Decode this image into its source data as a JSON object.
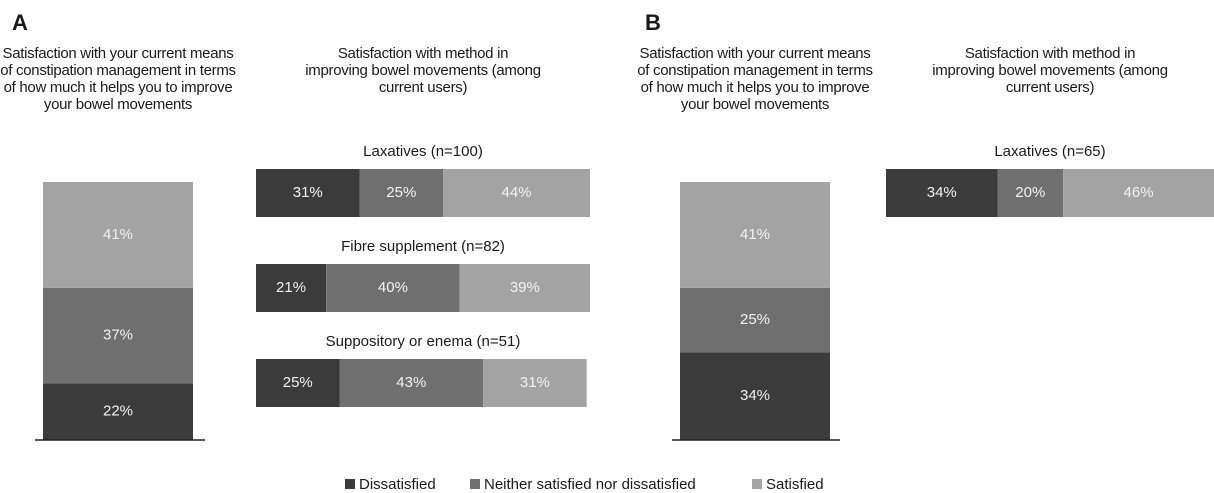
{
  "chart_data": [
    {
      "type": "stacked_column",
      "panel": "A",
      "title": "Satisfaction with your current means of constipation management in terms of how much it helps you to improve your bowel movements",
      "ylim": [
        0,
        100
      ],
      "series": [
        {
          "name": "Dissatisfied",
          "color": "#3b3b3b",
          "values": [
            22
          ],
          "value_labels": [
            "22%"
          ]
        },
        {
          "name": "Neither satisfied nor dissatisfied",
          "color": "#6f6f6f",
          "values": [
            37
          ],
          "value_labels": [
            "37%"
          ]
        },
        {
          "name": "Satisfied",
          "color": "#a3a3a3",
          "values": [
            41
          ],
          "value_labels": [
            "41%"
          ]
        }
      ]
    },
    {
      "type": "stacked_bar",
      "title": "Satisfaction with method in improving bowel movements (among current users)",
      "categories": [
        "Laxatives (n=100)",
        "Fibre supplement (n=82)",
        "Suppository or enema (n=51)"
      ],
      "xlim": [
        0,
        100
      ],
      "series": [
        {
          "name": "Dissatisfied",
          "color": "#3b3b3b",
          "values": [
            31,
            21,
            25
          ],
          "value_labels": [
            "31%",
            "21%",
            "25%"
          ]
        },
        {
          "name": "Neither satisfied nor dissatisfied",
          "color": "#6f6f6f",
          "values": [
            25,
            40,
            43
          ],
          "value_labels": [
            "25%",
            "40%",
            "43%"
          ]
        },
        {
          "name": "Satisfied",
          "color": "#a3a3a3",
          "values": [
            44,
            39,
            31
          ],
          "value_labels": [
            "44%",
            "39%",
            "31%"
          ]
        }
      ]
    },
    {
      "type": "stacked_column",
      "panel": "B",
      "title": "Satisfaction with your current means of constipation management in terms of how much it helps you to improve your bowel movements",
      "ylim": [
        0,
        100
      ],
      "series": [
        {
          "name": "Dissatisfied",
          "color": "#3b3b3b",
          "values": [
            34
          ],
          "value_labels": [
            "34%"
          ]
        },
        {
          "name": "Neither satisfied nor dissatisfied",
          "color": "#6f6f6f",
          "values": [
            25
          ],
          "value_labels": [
            "25%"
          ]
        },
        {
          "name": "Satisfied",
          "color": "#a3a3a3",
          "values": [
            41
          ],
          "value_labels": [
            "41%"
          ]
        }
      ]
    },
    {
      "type": "stacked_bar",
      "title": "Satisfaction with method in improving bowel movements (among current users)",
      "categories": [
        "Laxatives (n=65)"
      ],
      "xlim": [
        0,
        100
      ],
      "series": [
        {
          "name": "Dissatisfied",
          "color": "#3b3b3b",
          "values": [
            34
          ],
          "value_labels": [
            "34%"
          ]
        },
        {
          "name": "Neither satisfied nor dissatisfied",
          "color": "#6f6f6f",
          "values": [
            20
          ],
          "value_labels": [
            "20%"
          ]
        },
        {
          "name": "Satisfied",
          "color": "#a3a3a3",
          "values": [
            46
          ],
          "value_labels": [
            "46%"
          ]
        }
      ]
    }
  ]
}
